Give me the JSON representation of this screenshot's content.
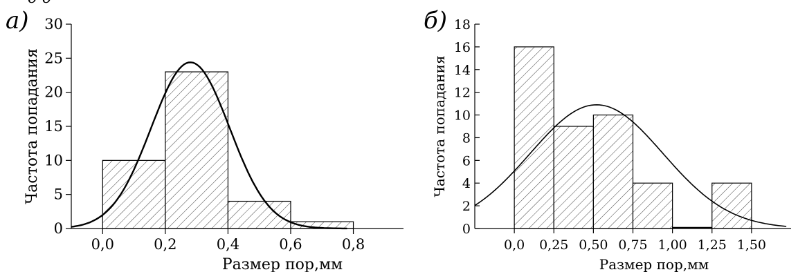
{
  "top_fragment_text": "д д",
  "chart_data": [
    {
      "type": "bar",
      "panel_label": "а)",
      "xlabel": "Размер пор,мм",
      "ylabel": "Частота попадания",
      "x_tick_labels": [
        "0,0",
        "0,2",
        "0,4",
        "0,6",
        "0,8"
      ],
      "x_ticks": [
        0.0,
        0.2,
        0.4,
        0.6,
        0.8
      ],
      "y_tick_labels": [
        "0",
        "5",
        "10",
        "15",
        "20",
        "25",
        "30"
      ],
      "y_ticks": [
        0,
        5,
        10,
        15,
        20,
        25,
        30
      ],
      "xlim": [
        -0.1,
        0.96
      ],
      "ylim": [
        0,
        30
      ],
      "bins": [
        {
          "x0": 0.0,
          "x1": 0.2,
          "value": 10
        },
        {
          "x0": 0.2,
          "x1": 0.4,
          "value": 23
        },
        {
          "x0": 0.4,
          "x1": 0.6,
          "value": 4
        },
        {
          "x0": 0.6,
          "x1": 0.8,
          "value": 1
        }
      ],
      "fit_curve": {
        "kind": "normal",
        "mean": 0.28,
        "sd": 0.125,
        "peak": 24.4,
        "x_range": [
          -0.1,
          0.78
        ]
      },
      "grid": false,
      "legend": "none"
    },
    {
      "type": "bar",
      "panel_label": "б)",
      "xlabel": "Размер пор,мм",
      "ylabel": "Частота попадания",
      "x_tick_labels": [
        "0,0",
        "0,25",
        "0,50",
        "0,75",
        "1,00",
        "1,25",
        "1,50"
      ],
      "x_ticks": [
        0.0,
        0.25,
        0.5,
        0.75,
        1.0,
        1.25,
        1.5
      ],
      "y_tick_labels": [
        "0",
        "2",
        "4",
        "6",
        "8",
        "10",
        "12",
        "14",
        "16",
        "18"
      ],
      "y_ticks": [
        0,
        2,
        4,
        6,
        8,
        10,
        12,
        14,
        16,
        18
      ],
      "xlim": [
        -0.25,
        1.75
      ],
      "ylim": [
        0,
        18
      ],
      "bins": [
        {
          "x0": 0.0,
          "x1": 0.25,
          "value": 16
        },
        {
          "x0": 0.25,
          "x1": 0.5,
          "value": 9
        },
        {
          "x0": 0.5,
          "x1": 0.75,
          "value": 10
        },
        {
          "x0": 0.75,
          "x1": 1.0,
          "value": 4
        },
        {
          "x0": 1.0,
          "x1": 1.25,
          "value": 0
        },
        {
          "x0": 1.25,
          "x1": 1.5,
          "value": 4
        }
      ],
      "fit_curve": {
        "kind": "normal",
        "mean": 0.52,
        "sd": 0.42,
        "peak": 10.9,
        "x_range": [
          -0.25,
          1.72
        ]
      },
      "grid": false,
      "legend": "none"
    }
  ]
}
